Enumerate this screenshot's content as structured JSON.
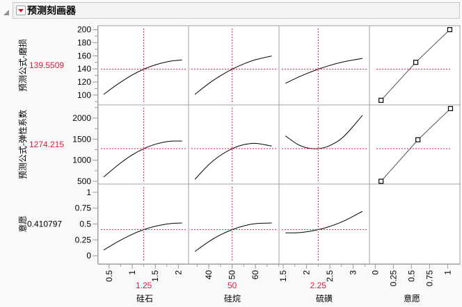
{
  "header": {
    "title": "预测刻画器"
  },
  "colors": {
    "accent": "#e8173c",
    "curve": "#000000",
    "frame": "#a0a0a0"
  },
  "icons": {
    "disclosure": "triangle-down-icon",
    "menu": "red-dropdown-icon"
  },
  "chart_data": {
    "type": "line",
    "title": "预测刻画器",
    "factors": [
      {
        "name": "硅石",
        "current": "1.25",
        "value": 1.25,
        "xlim": [
          0.26,
          2.22
        ],
        "ticks": [
          "0.5",
          "1",
          "1.5",
          "2"
        ],
        "tick_values": [
          0.5,
          1,
          1.5,
          2
        ],
        "minor_step": 0.25
      },
      {
        "name": "硅烷",
        "current": "50",
        "value": 50,
        "xlim": [
          31.3,
          70.1
        ],
        "ticks": [
          "40",
          "50",
          "60"
        ],
        "tick_values": [
          40,
          50,
          60
        ],
        "minor_step": 5
      },
      {
        "name": "硫磺",
        "current": "2.25",
        "value": 2.25,
        "xlim": [
          1.41,
          3.35
        ],
        "ticks": [
          "1.5",
          "2",
          "2.5",
          "3"
        ],
        "tick_values": [
          1.5,
          2,
          2.5,
          3
        ],
        "minor_step": 0.25
      },
      {
        "name": "意愿",
        "current": "",
        "xlim": [
          -0.08,
          1.17
        ],
        "ticks": [
          "0",
          "0.25",
          "0.5",
          "0.75",
          "1"
        ],
        "tick_values": [
          0,
          0.25,
          0.5,
          0.75,
          1
        ],
        "minor_step": null
      }
    ],
    "responses": [
      {
        "name": "预测公式-磨损",
        "current": "139.5509",
        "value": 139.5509,
        "value_color": "#e8173c",
        "ylim": [
          85,
          206
        ],
        "ticks": [
          "100",
          "120",
          "140",
          "160",
          "180",
          "200"
        ],
        "tick_values": [
          100,
          120,
          140,
          160,
          180,
          200
        ],
        "minor_step": 10,
        "curves": [
          {
            "x": [
              0.38,
              0.7,
              1.0,
              1.25,
              1.5,
              1.8,
              2.08
            ],
            "y": [
              101,
              117.4,
              130.7,
              139.55,
              146.2,
              151.5,
              153.7
            ]
          },
          {
            "x": [
              34,
              40,
              45,
              50,
              55,
              60,
              67
            ],
            "y": [
              101,
              117.7,
              129.5,
              139.55,
              147.7,
              154.0,
              159.7
            ]
          },
          {
            "x": [
              1.55,
              1.8,
              2.0,
              2.25,
              2.5,
              2.8,
              3.2
            ],
            "y": [
              117.9,
              126.6,
              132.7,
              139.55,
              145.3,
              150.9,
              156.1
            ]
          }
        ],
        "desirability": {
          "x": [
            0.08,
            0.56,
            1.03
          ],
          "y": [
            92,
            150,
            200
          ]
        }
      },
      {
        "name": "预测公式-弹性系数",
        "current": "1274.215",
        "value": 1274.215,
        "value_color": "#e8173c",
        "ylim": [
          434,
          2313
        ],
        "ticks": [
          "500",
          "1000",
          "1500",
          "2000"
        ],
        "tick_values": [
          500,
          1000,
          1500,
          2000
        ],
        "minor_step": 250,
        "curves": [
          {
            "x": [
              0.38,
              0.7,
              1.0,
              1.25,
              1.5,
              1.8,
              2.08
            ],
            "y": [
              600,
              894,
              1127,
              1274.2,
              1378.6,
              1447.5,
              1455
            ]
          },
          {
            "x": [
              34,
              40,
              45,
              50,
              55,
              60,
              67
            ],
            "y": [
              545,
              894.7,
              1116,
              1274.2,
              1368.6,
              1399.5,
              1336
            ]
          },
          {
            "x": [
              1.55,
              1.8,
              2.0,
              2.25,
              2.5,
              2.8,
              3.2
            ],
            "y": [
              1576,
              1382,
              1295.9,
              1274.2,
              1348.3,
              1563.6,
              2065
            ]
          }
        ],
        "desirability": {
          "x": [
            0.08,
            0.59,
            1.04
          ],
          "y": [
            500,
            1485,
            2225
          ]
        }
      },
      {
        "name": "意愿",
        "current": "0.410797",
        "value": 0.410797,
        "value_color": "#000000",
        "ylim": [
          -0.13,
          1.13
        ],
        "ticks": [
          "0",
          "0.25",
          "0.5",
          "0.75",
          "1"
        ],
        "tick_values": [
          0,
          0.25,
          0.5,
          0.75,
          1
        ],
        "minor_step": null,
        "curves": [
          {
            "x": [
              0.38,
              0.7,
              1.0,
              1.25,
              1.5,
              1.8,
              2.08
            ],
            "y": [
              0.088,
              0.227,
              0.338,
              0.4108,
              0.464,
              0.504,
              0.516
            ]
          },
          {
            "x": [
              34,
              40,
              45,
              50,
              55,
              60,
              67
            ],
            "y": [
              0.066,
              0.223,
              0.329,
              0.4108,
              0.47,
              0.505,
              0.516
            ]
          },
          {
            "x": [
              1.55,
              1.8,
              2.0,
              2.25,
              2.5,
              2.8,
              3.2
            ],
            "y": [
              0.36,
              0.362,
              0.377,
              0.4108,
              0.462,
              0.547,
              0.7
            ]
          }
        ],
        "desirability": null
      }
    ]
  }
}
